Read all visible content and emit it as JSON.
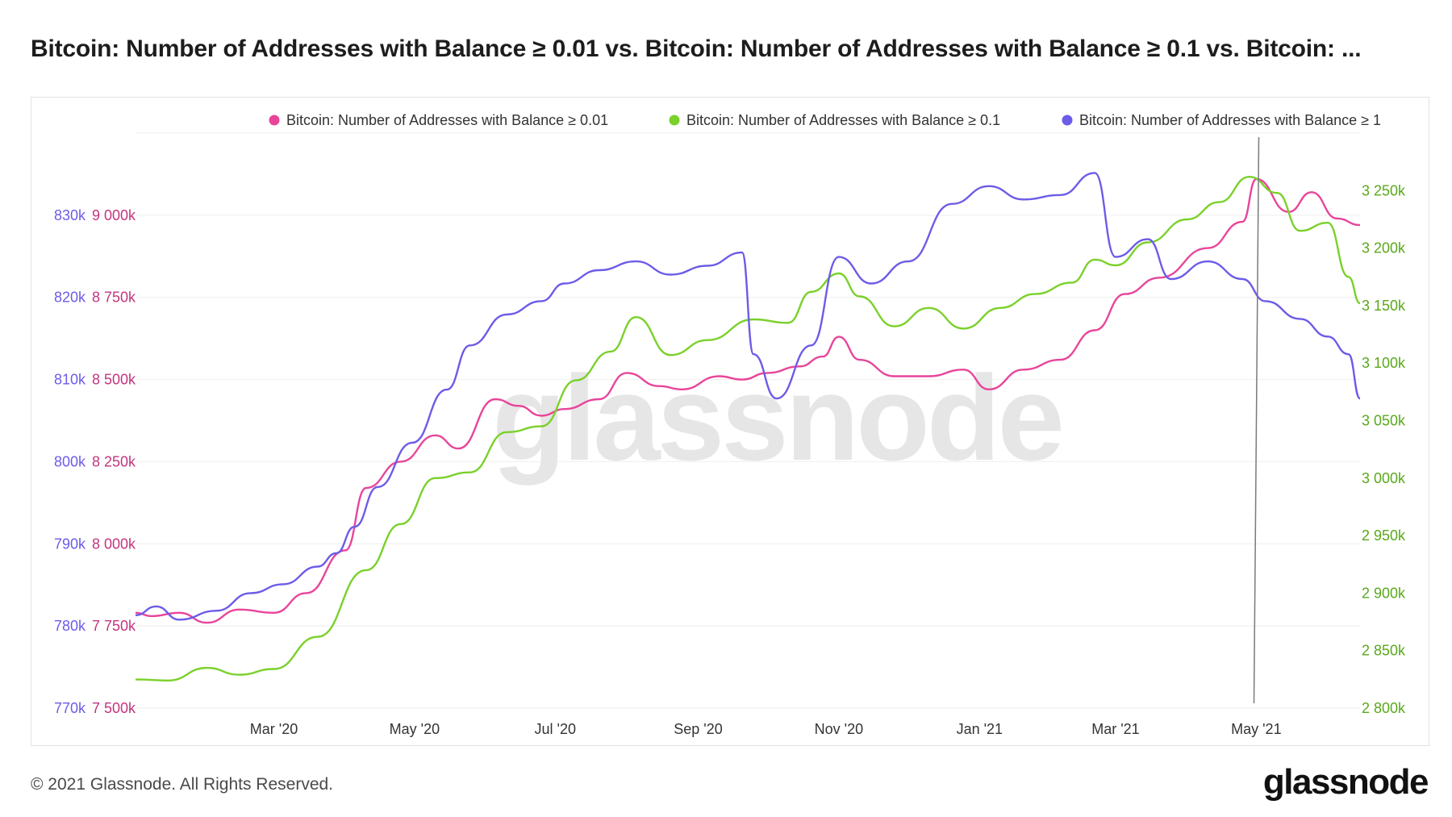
{
  "title": "Bitcoin: Number of Addresses with Balance ≥ 0.01 vs. Bitcoin: Number of Addresses with Balance ≥ 0.1 vs. Bitcoin: ...",
  "footer": {
    "copyright": "© 2021 Glassnode. All Rights Reserved.",
    "logo": "glassnode"
  },
  "watermark": "glassnode",
  "colors": {
    "pink": "#e8459a",
    "green": "#7ad12a",
    "purple": "#6c5ce7",
    "crosshair": "#7a7a7a",
    "grid": "#eeeeee"
  },
  "chart_data": {
    "type": "line",
    "x_ticks": [
      "Mar '20",
      "May '20",
      "Jul '20",
      "Sep '20",
      "Nov '20",
      "Jan '21",
      "Mar '21",
      "May '21"
    ],
    "y_left_outer": {
      "range": [
        770000,
        835000
      ],
      "ticks": [
        "770k",
        "780k",
        "790k",
        "800k",
        "810k",
        "820k",
        "830k"
      ]
    },
    "y_left_inner": {
      "range": [
        7500000,
        9250000
      ],
      "ticks": [
        "7 500k",
        "7 750k",
        "8 000k",
        "8 250k",
        "8 500k",
        "8 750k",
        "9 000k"
      ]
    },
    "y_right": {
      "range": [
        2800000,
        3300000
      ],
      "ticks": [
        "2 800k",
        "2 850k",
        "2 900k",
        "2 950k",
        "3 000k",
        "3 050k",
        "3 100k",
        "3 150k",
        "3 200k",
        "3 250k"
      ]
    },
    "crosshair_date": "2021-04-30",
    "series": [
      {
        "name": "Bitcoin: Number of Addresses with Balance ≥ 0.01",
        "axis": "left_inner",
        "color": "#e8459a",
        "points": [
          [
            "2020-01-01",
            7790000
          ],
          [
            "2020-01-08",
            7780000
          ],
          [
            "2020-01-20",
            7790000
          ],
          [
            "2020-02-01",
            7760000
          ],
          [
            "2020-02-15",
            7800000
          ],
          [
            "2020-03-01",
            7790000
          ],
          [
            "2020-03-15",
            7850000
          ],
          [
            "2020-04-01",
            7980000
          ],
          [
            "2020-04-10",
            8170000
          ],
          [
            "2020-04-25",
            8250000
          ],
          [
            "2020-05-10",
            8330000
          ],
          [
            "2020-05-20",
            8290000
          ],
          [
            "2020-06-05",
            8440000
          ],
          [
            "2020-06-15",
            8420000
          ],
          [
            "2020-06-25",
            8390000
          ],
          [
            "2020-07-05",
            8410000
          ],
          [
            "2020-07-20",
            8440000
          ],
          [
            "2020-08-01",
            8520000
          ],
          [
            "2020-08-15",
            8480000
          ],
          [
            "2020-08-25",
            8470000
          ],
          [
            "2020-09-10",
            8510000
          ],
          [
            "2020-09-20",
            8500000
          ],
          [
            "2020-10-01",
            8520000
          ],
          [
            "2020-10-15",
            8540000
          ],
          [
            "2020-10-25",
            8570000
          ],
          [
            "2020-11-01",
            8630000
          ],
          [
            "2020-11-10",
            8560000
          ],
          [
            "2020-11-25",
            8510000
          ],
          [
            "2020-12-10",
            8510000
          ],
          [
            "2020-12-25",
            8530000
          ],
          [
            "2021-01-05",
            8470000
          ],
          [
            "2021-01-20",
            8530000
          ],
          [
            "2021-02-05",
            8560000
          ],
          [
            "2021-02-20",
            8650000
          ],
          [
            "2021-03-05",
            8760000
          ],
          [
            "2021-03-20",
            8810000
          ],
          [
            "2021-04-10",
            8900000
          ],
          [
            "2021-04-25",
            8980000
          ],
          [
            "2021-05-01",
            9110000
          ],
          [
            "2021-05-15",
            9010000
          ],
          [
            "2021-05-25",
            9070000
          ],
          [
            "2021-06-05",
            8990000
          ],
          [
            "2021-06-15",
            8970000
          ]
        ]
      },
      {
        "name": "Bitcoin: Number of Addresses with Balance ≥ 0.1",
        "axis": "right",
        "color": "#7ad12a",
        "points": [
          [
            "2020-01-01",
            2825000
          ],
          [
            "2020-01-15",
            2824000
          ],
          [
            "2020-02-01",
            2835000
          ],
          [
            "2020-02-15",
            2829000
          ],
          [
            "2020-03-01",
            2834000
          ],
          [
            "2020-03-20",
            2862000
          ],
          [
            "2020-04-10",
            2920000
          ],
          [
            "2020-04-25",
            2960000
          ],
          [
            "2020-05-10",
            3000000
          ],
          [
            "2020-05-25",
            3005000
          ],
          [
            "2020-06-10",
            3040000
          ],
          [
            "2020-06-25",
            3045000
          ],
          [
            "2020-07-10",
            3085000
          ],
          [
            "2020-07-25",
            3110000
          ],
          [
            "2020-08-05",
            3140000
          ],
          [
            "2020-08-20",
            3107000
          ],
          [
            "2020-09-05",
            3120000
          ],
          [
            "2020-09-25",
            3138000
          ],
          [
            "2020-10-10",
            3135000
          ],
          [
            "2020-10-20",
            3162000
          ],
          [
            "2020-11-01",
            3178000
          ],
          [
            "2020-11-10",
            3158000
          ],
          [
            "2020-11-25",
            3132000
          ],
          [
            "2020-12-10",
            3148000
          ],
          [
            "2020-12-25",
            3130000
          ],
          [
            "2021-01-10",
            3148000
          ],
          [
            "2021-01-25",
            3160000
          ],
          [
            "2021-02-10",
            3170000
          ],
          [
            "2021-02-20",
            3190000
          ],
          [
            "2021-03-01",
            3185000
          ],
          [
            "2021-03-15",
            3205000
          ],
          [
            "2021-04-01",
            3225000
          ],
          [
            "2021-04-15",
            3240000
          ],
          [
            "2021-04-28",
            3262000
          ],
          [
            "2021-05-10",
            3248000
          ],
          [
            "2021-05-20",
            3215000
          ],
          [
            "2021-06-01",
            3222000
          ],
          [
            "2021-06-10",
            3175000
          ],
          [
            "2021-06-15",
            3152000
          ]
        ]
      },
      {
        "name": "Bitcoin: Number of Addresses with Balance ≥ 1",
        "axis": "left_outer",
        "color": "#6c5ce7",
        "points": [
          [
            "2020-01-01",
            780500
          ],
          [
            "2020-01-10",
            781500
          ],
          [
            "2020-01-20",
            780000
          ],
          [
            "2020-02-05",
            781000
          ],
          [
            "2020-02-20",
            783000
          ],
          [
            "2020-03-05",
            784000
          ],
          [
            "2020-03-20",
            786000
          ],
          [
            "2020-03-28",
            787500
          ],
          [
            "2020-04-05",
            790500
          ],
          [
            "2020-04-15",
            795000
          ],
          [
            "2020-04-30",
            800000
          ],
          [
            "2020-05-15",
            806000
          ],
          [
            "2020-05-25",
            811000
          ],
          [
            "2020-06-10",
            814500
          ],
          [
            "2020-06-25",
            816000
          ],
          [
            "2020-07-05",
            818000
          ],
          [
            "2020-07-20",
            819500
          ],
          [
            "2020-08-05",
            820500
          ],
          [
            "2020-08-20",
            819000
          ],
          [
            "2020-09-05",
            820000
          ],
          [
            "2020-09-20",
            821500
          ],
          [
            "2020-09-25",
            810000
          ],
          [
            "2020-10-05",
            805000
          ],
          [
            "2020-10-20",
            811000
          ],
          [
            "2020-11-01",
            821000
          ],
          [
            "2020-11-15",
            818000
          ],
          [
            "2020-12-01",
            820500
          ],
          [
            "2020-12-20",
            827000
          ],
          [
            "2021-01-05",
            829000
          ],
          [
            "2021-01-20",
            827500
          ],
          [
            "2021-02-05",
            828000
          ],
          [
            "2021-02-20",
            830500
          ],
          [
            "2021-03-01",
            821000
          ],
          [
            "2021-03-15",
            823000
          ],
          [
            "2021-03-25",
            818500
          ],
          [
            "2021-04-10",
            820500
          ],
          [
            "2021-04-25",
            818500
          ],
          [
            "2021-05-05",
            816000
          ],
          [
            "2021-05-20",
            814000
          ],
          [
            "2021-06-01",
            812000
          ],
          [
            "2021-06-10",
            810000
          ],
          [
            "2021-06-15",
            805000
          ]
        ]
      }
    ]
  }
}
